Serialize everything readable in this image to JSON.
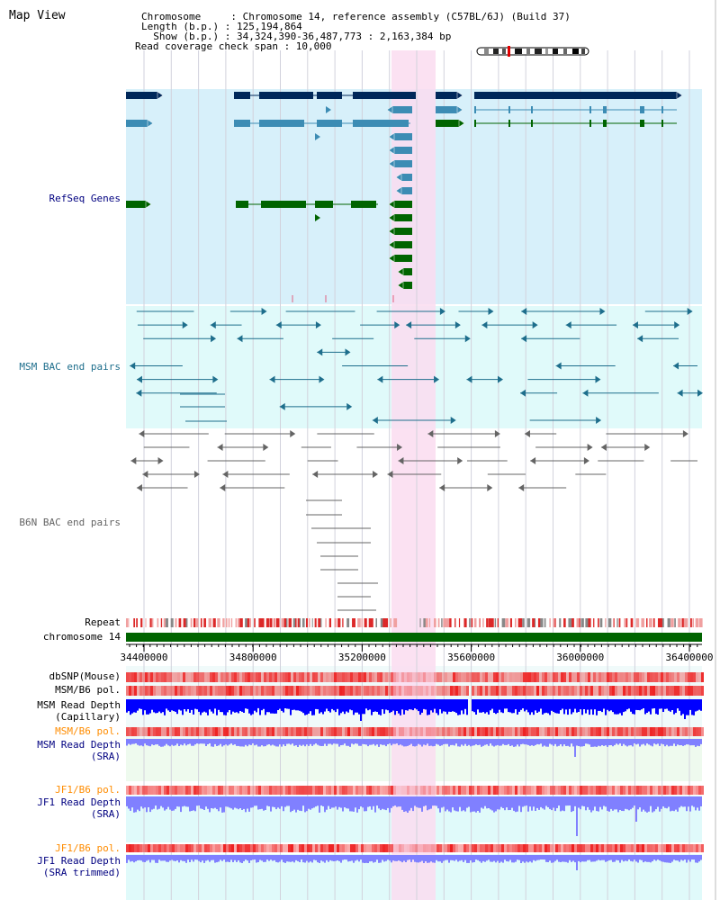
{
  "title": "Map View",
  "header": {
    "chromosome": "Chromosome     : Chromosome 14, reference assembly (C57BL/6J) (Build 37)",
    "length": "Length (b.p.) : 125,194,864",
    "show": "  Show (b.p.) : 34,324,390-36,487,773 : 2,163,384 bp",
    "span": "Read coverage check span : 10,000"
  },
  "tracks": {
    "refseq": "RefSeq Genes",
    "msm_bac": "MSM BAC end pairs",
    "b6n_bac": "B6N BAC end pairs",
    "repeat": "Repeat",
    "chromosome": "chromosome 14",
    "dbsnp": "dbSNP(Mouse)",
    "msm_b6_pol": "MSM/B6 pol.",
    "msm_depth_cap_1": "MSM Read Depth",
    "msm_depth_cap_2": "(Capillary)",
    "msm_b6_pol_2": "MSM/B6 pol.",
    "msm_depth_sra_1": "MSM Read Depth",
    "msm_depth_sra_2": "(SRA)",
    "jf1_b6_pol": "JF1/B6 pol.",
    "jf1_depth_sra_1": "JF1 Read Depth",
    "jf1_depth_sra_2": "(SRA)",
    "jf1_b6_pol_2": "JF1/B6 pol.",
    "jf1_depth_trim_1": "JF1 Read Depth",
    "jf1_depth_trim_2": "(SRA trimmed)"
  },
  "axis": {
    "ticks": [
      {
        "pos": 34400000,
        "label": "34400000"
      },
      {
        "pos": 34800000,
        "label": "34800000"
      },
      {
        "pos": 35200000,
        "label": "35200000"
      },
      {
        "pos": 35600000,
        "label": "35600000"
      },
      {
        "pos": 36000000,
        "label": "36000000"
      },
      {
        "pos": 36400000,
        "label": "36400000"
      }
    ]
  },
  "colors": {
    "refseq_bg": "#d7f0fa",
    "bac_bg": "#e0fafa",
    "highlight": "#fadcf0",
    "gene_dark": "#00285a",
    "gene_mid": "#3c8cb4",
    "gene_green": "#006400",
    "msm_pair": "#1e6e8c",
    "b6n_pair": "#646464",
    "chrom": "#006400",
    "depth_cap": "#0000ff",
    "depth_sra": "#8080ff",
    "pol_label": "#ff8c00",
    "label_blue": "#000080"
  }
}
